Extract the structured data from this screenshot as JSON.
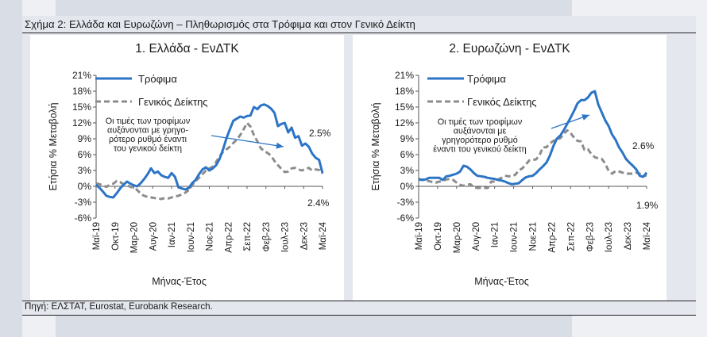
{
  "figure": {
    "title": "Σχήμα 2: Ελλάδα και Ευρωζώνη – Πληθωρισμός στα Τρόφιμα και στον Γενικό Δείκτη",
    "source": "Πηγή: ΕΛΣΤΑΤ, Eurostat, Eurobank Research."
  },
  "colors": {
    "food": "#2b74c6",
    "general": "#8c8c8c",
    "arrow": "#2b74c6"
  },
  "chart_data": [
    {
      "type": "line",
      "title": "1. Ελλάδα - ΕνΔΤΚ",
      "xlabel": "Μήνας-Έτος",
      "ylabel": "Ετήσια % Μεταβολή",
      "ylim": [
        -6,
        21
      ],
      "yticks": [
        "21%",
        "18%",
        "15%",
        "12%",
        "9%",
        "6%",
        "3%",
        "0%",
        "-3%",
        "-6%"
      ],
      "xticks": [
        "Μαϊ-19",
        "Οκτ-19",
        "Μαρ-20",
        "Αυγ-20",
        "Ιαν-21",
        "Ιουν-21",
        "Νοε-21",
        "Απρ-22",
        "Σεπ-22",
        "Φεβ-23",
        "Ιουλ-23",
        "Δεκ-23",
        "Μαϊ-24"
      ],
      "legend_position": "top-left",
      "series": [
        {
          "name": "Τρόφιμα",
          "style": "solid",
          "values": [
            0.3,
            -0.3,
            -1.0,
            -1.8,
            -2.0,
            -2.1,
            -1.3,
            -0.4,
            0.3,
            0.9,
            0.5,
            0.2,
            0.0,
            0.6,
            1.4,
            2.3,
            3.4,
            2.5,
            2.8,
            2.1,
            1.8,
            1.6,
            2.5,
            1.8,
            -0.2,
            -0.4,
            -0.6,
            -0.3,
            0.6,
            1.2,
            2.3,
            3.2,
            3.6,
            3.0,
            3.4,
            4.0,
            5.2,
            7.0,
            9.1,
            10.8,
            12.4,
            12.8,
            13.2,
            13.0,
            13.3,
            13.4,
            15.0,
            14.6,
            15.3,
            15.5,
            15.2,
            14.7,
            13.9,
            11.4,
            11.8,
            12.0,
            10.2,
            11.1,
            9.2,
            9.5,
            7.7,
            8.1,
            7.5,
            6.2,
            5.4,
            5.0,
            2.5
          ]
        },
        {
          "name": "Γενικός Δείκτης",
          "style": "dashed",
          "values": [
            0.6,
            0.4,
            0.2,
            -0.1,
            0.3,
            0.5,
            1.0,
            0.8,
            0.4,
            0.2,
            -0.1,
            -0.3,
            -0.7,
            -1.4,
            -1.8,
            -2.0,
            -2.1,
            -2.2,
            -2.3,
            -2.4,
            -2.2,
            -2.3,
            -2.1,
            -1.9,
            -1.8,
            -1.5,
            -1.2,
            -0.7,
            0.2,
            1.0,
            1.6,
            2.3,
            3.0,
            3.4,
            3.7,
            4.6,
            5.7,
            6.5,
            7.0,
            7.5,
            8.2,
            8.8,
            9.7,
            10.8,
            12.0,
            11.3,
            9.7,
            8.5,
            7.2,
            6.7,
            6.3,
            5.8,
            4.8,
            4.0,
            3.3,
            2.7,
            2.8,
            3.4,
            3.5,
            3.2,
            3.0,
            3.3,
            3.5,
            3.0,
            3.2,
            3.1,
            2.4
          ]
        }
      ],
      "annotation": {
        "lines": [
          "Οι τιμές των τροφίμων",
          "αυξάνονται με γρηγο-",
          "ρότερο ρυθμό έναντι",
          "του γενικού δείκτη"
        ]
      },
      "end_labels": {
        "food": "2.5%",
        "general": "2.4%"
      }
    },
    {
      "type": "line",
      "title": "2. Ευρωζώνη - ΕνΔΤΚ",
      "xlabel": "Μήνας-Έτος",
      "ylabel": "Ετήσια % Μεταβολή",
      "ylim": [
        -6,
        21
      ],
      "yticks": [
        "21%",
        "18%",
        "15%",
        "12%",
        "9%",
        "6%",
        "3%",
        "0%",
        "-3%",
        "-6%"
      ],
      "xticks": [
        "Μαϊ-19",
        "Οκτ-19",
        "Μαρ-20",
        "Αυγ-20",
        "Ιαν-21",
        "Ιουν-21",
        "Νοε-21",
        "Απρ-22",
        "Σεπ-22",
        "Φεβ-23",
        "Ιουλ-23",
        "Δεκ-23",
        "Μαϊ-24"
      ],
      "legend_position": "top-left",
      "series": [
        {
          "name": "Τρόφιμα",
          "style": "solid",
          "values": [
            1.4,
            1.2,
            1.3,
            1.6,
            1.6,
            1.6,
            1.6,
            1.2,
            1.9,
            2.0,
            2.2,
            2.4,
            2.8,
            3.9,
            3.7,
            3.2,
            2.5,
            2.0,
            1.9,
            1.8,
            1.6,
            1.5,
            1.4,
            1.2,
            1.1,
            0.9,
            0.6,
            0.4,
            0.5,
            0.6,
            1.2,
            1.7,
            1.9,
            2.0,
            2.5,
            3.2,
            3.8,
            4.5,
            5.8,
            7.6,
            9.0,
            9.6,
            10.6,
            11.8,
            13.0,
            14.3,
            15.7,
            16.3,
            16.3,
            16.8,
            17.7,
            18.0,
            15.5,
            14.0,
            12.5,
            11.4,
            9.8,
            8.8,
            7.4,
            6.4,
            5.2,
            4.5,
            3.9,
            3.2,
            2.0,
            1.8,
            2.6
          ]
        },
        {
          "name": "Γενικός Δείκτης",
          "style": "dashed",
          "values": [
            1.2,
            1.3,
            1.0,
            1.0,
            0.8,
            0.7,
            0.9,
            1.0,
            1.3,
            1.4,
            1.2,
            0.7,
            0.3,
            0.1,
            0.3,
            0.4,
            -0.2,
            -0.3,
            -0.3,
            -0.3,
            -0.3,
            0.9,
            0.9,
            1.3,
            1.6,
            2.0,
            1.9,
            1.9,
            2.2,
            3.0,
            3.4,
            4.1,
            4.9,
            5.0,
            5.1,
            5.9,
            7.4,
            7.4,
            8.1,
            8.6,
            8.9,
            9.1,
            9.9,
            10.6,
            10.1,
            9.2,
            8.6,
            8.5,
            6.9,
            7.0,
            6.1,
            5.5,
            5.3,
            5.2,
            4.3,
            2.9,
            2.4,
            2.9,
            2.8,
            2.6,
            2.4,
            2.4,
            2.4,
            2.6,
            2.4,
            2.2,
            1.9
          ]
        }
      ],
      "annotation": {
        "lines": [
          "Οι τιμές των τροφίμων",
          "αυξάνονται με",
          "γρηγορότερο ρυθμό",
          "έναντι του γενικού δείκτη"
        ]
      },
      "end_labels": {
        "food": "2.6%",
        "general": "1.9%"
      }
    }
  ]
}
